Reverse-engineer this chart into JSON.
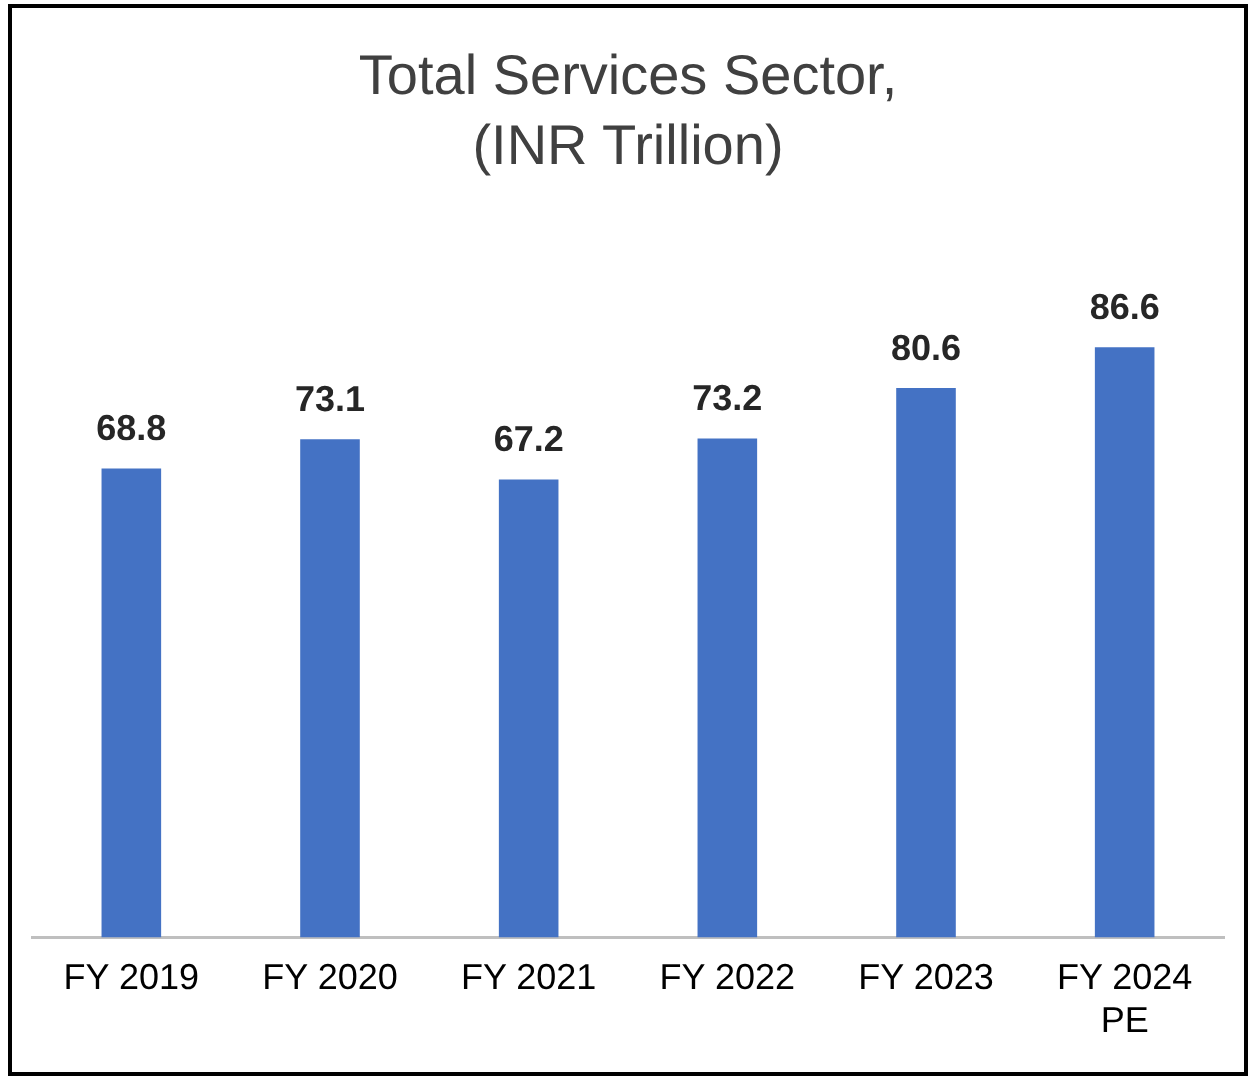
{
  "chart_data": {
    "type": "bar",
    "title": "Total Services Sector,\n(INR Trillion)",
    "categories": [
      "FY 2019",
      "FY 2020",
      "FY 2021",
      "FY 2022",
      "FY 2023",
      "FY 2024\nPE"
    ],
    "values": [
      68.8,
      73.1,
      67.2,
      73.2,
      80.6,
      86.6
    ],
    "color": "#4472c4",
    "data_labels": true,
    "grid": false,
    "legend": false
  }
}
